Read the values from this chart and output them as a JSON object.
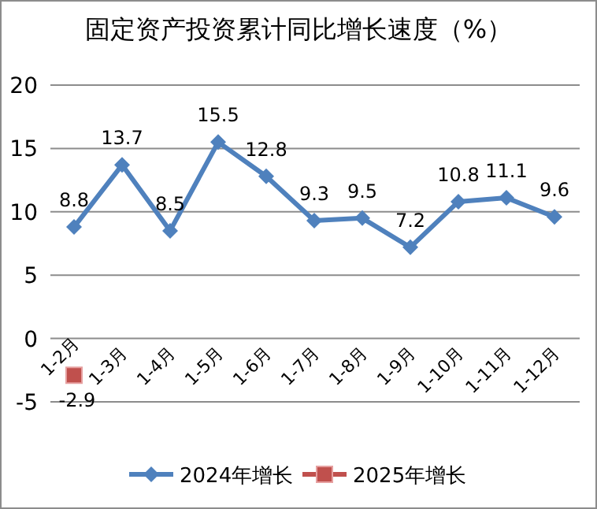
{
  "chart_data": {
    "type": "line",
    "title": "固定资产投资累计同比增长速度（%）",
    "categories": [
      "1-2月",
      "1-3月",
      "1-4月",
      "1-5月",
      "1-6月",
      "1-7月",
      "1-8月",
      "1-9月",
      "1-10月",
      "1-11月",
      "1-12月"
    ],
    "series": [
      {
        "name": "2024年增长",
        "color": "#4f81bd",
        "marker": "diamond",
        "values": [
          8.8,
          13.7,
          8.5,
          15.5,
          12.8,
          9.3,
          9.5,
          7.2,
          10.8,
          11.1,
          9.6
        ]
      },
      {
        "name": "2025年增长",
        "color": "#c0504d",
        "marker": "square",
        "values": [
          -2.9,
          null,
          null,
          null,
          null,
          null,
          null,
          null,
          null,
          null,
          null
        ]
      }
    ],
    "ylim": [
      -5,
      20
    ],
    "yticks": [
      -5,
      0,
      5,
      10,
      15,
      20
    ],
    "grid": "y",
    "data_labels": true,
    "legend": "bottom"
  }
}
